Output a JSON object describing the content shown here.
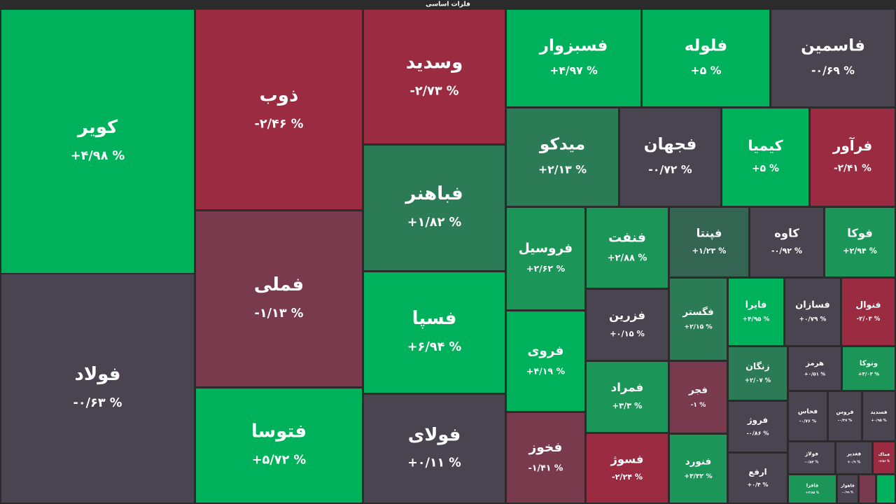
{
  "chart_data": {
    "type": "treemap",
    "title": "فلزات اساسی",
    "categories": [
      "کویر",
      "فولاد",
      "ذوب",
      "فملی",
      "فتوسا",
      "وسدید",
      "فباهنر",
      "فسپا",
      "فولای",
      "فسبزوار",
      "فلوله",
      "فاسمین",
      "میدکو",
      "فجهان",
      "کیمیا",
      "فرآور",
      "فروسیل",
      "فنفت",
      "فپنتا",
      "کاوه",
      "فوکا",
      "فروی",
      "فزرین",
      "فگستر",
      "فایرا",
      "فسازان",
      "فنوال",
      "فخوز",
      "فمراد",
      "فجر",
      "فسوژ",
      "فنورد",
      "زنگان",
      "فروژ",
      "ارفع",
      "هرمز",
      "ونوکا",
      "فخاس",
      "فروس",
      "فسدید",
      "فولاژ",
      "فغدیر",
      "فماک",
      "فافزا",
      "فاهواز"
    ],
    "values": [
      4.98,
      -0.63,
      -2.46,
      -1.13,
      5.72,
      -2.73,
      1.82,
      6.94,
      0.11,
      4.97,
      5,
      -0.69,
      2.13,
      -0.72,
      5,
      -2.41,
      2.62,
      2.88,
      1.23,
      -0.92,
      2.94,
      4.19,
      0.15,
      2.15,
      4.95,
      0.79,
      -2.03,
      -1.41,
      3.3,
      -1,
      -2.24,
      3.32,
      2.07,
      -0.86,
      0.4,
      0.51,
      3.03,
      -0.76,
      -0.37,
      0.95,
      -0.53,
      0.9,
      -2.56,
      2.85,
      -0.99
    ],
    "value_labels": [
      "+۴/۹۸ %",
      "-۰/۶۳ %",
      "-۲/۴۶ %",
      "-۱/۱۳ %",
      "+۵/۷۲ %",
      "-۲/۷۳ %",
      "+۱/۸۲ %",
      "+۶/۹۴ %",
      "+۰/۱۱ %",
      "+۴/۹۷ %",
      "+۵ %",
      "-۰/۶۹ %",
      "+۲/۱۳ %",
      "-۰/۷۲ %",
      "+۵ %",
      "-۲/۴۱ %",
      "+۲/۶۲ %",
      "+۲/۸۸ %",
      "+۱/۲۳ %",
      "-۰/۹۲ %",
      "+۲/۹۴ %",
      "+۴/۱۹ %",
      "+۰/۱۵ %",
      "+۲/۱۵ %",
      "+۴/۹۵ %",
      "+۰/۷۹ %",
      "-۲/۰۳ %",
      "-۱/۴۱ %",
      "+۳/۳ %",
      "-۱ %",
      "-۲/۲۴ %",
      "+۳/۳۲ %",
      "+۲/۰۷ %",
      "-۰/۸۶ %",
      "+۰/۴ %",
      "+۰/۵۱ %",
      "+۳/۰۳ %",
      "-۰/۷۶ %",
      "-۰/۳۷ %",
      "+۰/۹۵ %",
      "-۰/۵۳ %",
      "+۰/۹ %",
      "-۲/۵۶ %",
      "+۲/۸۵ %",
      "-۰/۹۹ %"
    ]
  }
}
